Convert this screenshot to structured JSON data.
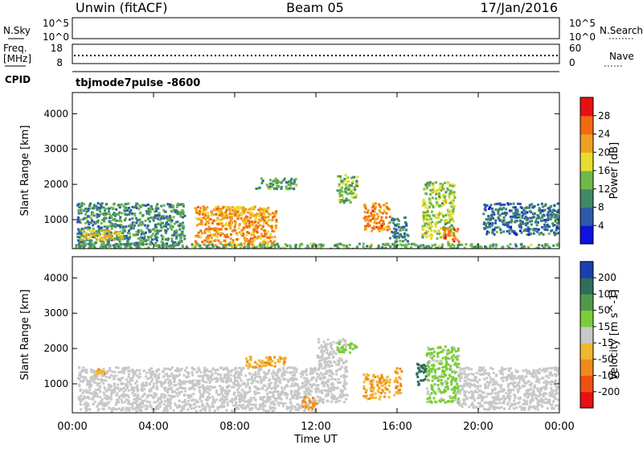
{
  "header": {
    "station": "Unwin (fitACF)",
    "beam": "Beam 05",
    "date": "17/Jan/2016"
  },
  "status_panels": {
    "nsky": {
      "label": "N.Sky",
      "ticks": [
        "10^5",
        "10^0"
      ]
    },
    "nsearch": {
      "label": "N.Search",
      "ticks": [
        "10^5",
        "10^0"
      ]
    },
    "freq": {
      "label_line1": "Freq.",
      "label_line2": "[MHz]",
      "ticks": [
        "18",
        "8"
      ],
      "value": 12
    },
    "nave": {
      "label": "Nave",
      "ticks": [
        "60",
        "0"
      ]
    },
    "cpid": {
      "label": "CPID",
      "value": "tbjmode7pulse  -8600"
    }
  },
  "chart_data": [
    {
      "type": "heatmap",
      "name": "power",
      "ylabel": "Slant Range [km]",
      "yticks": [
        1000,
        2000,
        3000,
        4000
      ],
      "ylim": [
        180,
        4600
      ],
      "colorbar_label": "Power [dB]",
      "colorbar_ticks": [
        4,
        8,
        12,
        16,
        20,
        24,
        28
      ],
      "colorbar_colors": [
        "#1010e0",
        "#2c5aa8",
        "#3f8a66",
        "#6fb84a",
        "#e8dc30",
        "#f0a020",
        "#f26a10",
        "#e81010"
      ],
      "clim": [
        0,
        32
      ],
      "echo_regions": [
        {
          "t0": 0.2,
          "t1": 5.5,
          "r0": 260,
          "r1": 1500,
          "level": 10
        },
        {
          "t0": 0.3,
          "t1": 2.5,
          "r0": 450,
          "r1": 750,
          "level": 19
        },
        {
          "t0": 6.0,
          "t1": 10.0,
          "r0": 280,
          "r1": 1400,
          "level": 23
        },
        {
          "t0": 7.0,
          "t1": 9.5,
          "r0": 1100,
          "r1": 1400,
          "level": 21
        },
        {
          "t0": 9.0,
          "t1": 11.0,
          "r0": 1900,
          "r1": 2200,
          "level": 12
        },
        {
          "t0": 13.0,
          "t1": 14.0,
          "r0": 1500,
          "r1": 2300,
          "level": 14
        },
        {
          "t0": 14.3,
          "t1": 15.6,
          "r0": 700,
          "r1": 1500,
          "level": 24
        },
        {
          "t0": 15.6,
          "t1": 16.5,
          "r0": 400,
          "r1": 1100,
          "level": 9
        },
        {
          "t0": 17.2,
          "t1": 18.8,
          "r0": 500,
          "r1": 2100,
          "level": 16
        },
        {
          "t0": 18.2,
          "t1": 19.0,
          "r0": 400,
          "r1": 800,
          "level": 25
        },
        {
          "t0": 20.2,
          "t1": 24.0,
          "r0": 600,
          "r1": 1500,
          "level": 8
        },
        {
          "t0": 0.0,
          "t1": 24.0,
          "r0": 180,
          "r1": 350,
          "level": 12
        }
      ]
    },
    {
      "type": "heatmap",
      "name": "velocity",
      "xlabel": "Time UT",
      "ylabel": "Slant Range [km]",
      "xlim": [
        0,
        24
      ],
      "xticks": [
        "00:00",
        "04:00",
        "08:00",
        "12:00",
        "16:00",
        "20:00",
        "00:00"
      ],
      "yticks": [
        1000,
        2000,
        3000,
        4000
      ],
      "ylim": [
        180,
        4600
      ],
      "colorbar_label": "Velocity [m s^-1]",
      "colorbar_ticks": [
        200,
        100,
        50,
        15,
        -15,
        -50,
        -100,
        -200
      ],
      "colorbar_colors": [
        "#1a3fb0",
        "#2f6e5a",
        "#4f9a4a",
        "#7ccc3a",
        "#c8c8c8",
        "#f0b830",
        "#f08a1a",
        "#ee5010",
        "#e81010"
      ],
      "echo_regions": [
        {
          "t0": 0.2,
          "t1": 12.0,
          "r0": 260,
          "r1": 1500,
          "level": 0
        },
        {
          "t0": 1.0,
          "t1": 1.6,
          "r0": 1250,
          "r1": 1450,
          "level": -40
        },
        {
          "t0": 8.5,
          "t1": 10.5,
          "r0": 1500,
          "r1": 1800,
          "level": -45
        },
        {
          "t0": 11.3,
          "t1": 12.0,
          "r0": 300,
          "r1": 700,
          "level": -60
        },
        {
          "t0": 12.0,
          "t1": 13.5,
          "r0": 500,
          "r1": 2300,
          "level": 0
        },
        {
          "t0": 14.3,
          "t1": 15.6,
          "r0": 600,
          "r1": 1300,
          "level": -45
        },
        {
          "t0": 15.8,
          "t1": 16.2,
          "r0": 700,
          "r1": 1500,
          "level": -50
        },
        {
          "t0": 16.9,
          "t1": 17.4,
          "r0": 1000,
          "r1": 1600,
          "level": 140
        },
        {
          "t0": 17.4,
          "t1": 19.0,
          "r0": 500,
          "r1": 2100,
          "level": 25
        },
        {
          "t0": 13.0,
          "t1": 14.0,
          "r0": 1900,
          "r1": 2200,
          "level": 30
        },
        {
          "t0": 19.0,
          "t1": 24.0,
          "r0": 300,
          "r1": 1500,
          "level": 0
        }
      ]
    }
  ]
}
